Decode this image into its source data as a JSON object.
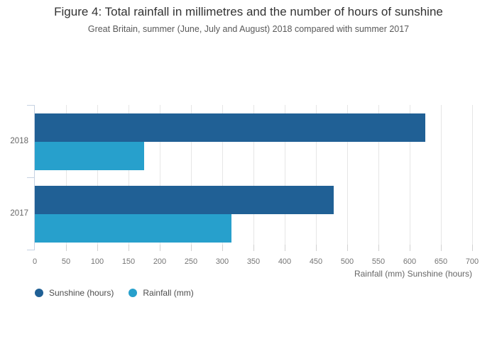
{
  "figure": {
    "title": "Figure 4: Total rainfall in millimetres and the number of hours of sunshine",
    "subtitle": "Great Britain, summer (June, July and August) 2018 compared with summer 2017"
  },
  "chart_data": {
    "type": "bar",
    "orientation": "horizontal",
    "categories": [
      "2018",
      "2017"
    ],
    "series": [
      {
        "name": "Sunshine (hours)",
        "color": "#206095",
        "values": [
          625,
          478
        ]
      },
      {
        "name": "Rainfall (mm)",
        "color": "#27a0cc",
        "values": [
          175,
          315
        ]
      }
    ],
    "xlabel": "Rainfall (mm) Sunshine (hours)",
    "xlim": [
      0,
      700
    ],
    "xticks": [
      0,
      50,
      100,
      150,
      200,
      250,
      300,
      350,
      400,
      450,
      500,
      550,
      600,
      650,
      700
    ],
    "grid": true,
    "legend_position": "bottom-left"
  },
  "colors": {
    "sunshine": "#206095",
    "rainfall": "#27a0cc",
    "axis_line": "#c6d2e2",
    "gridline": "#e6e6e6",
    "tick": "#d1d1d1",
    "tick_label": "#747474",
    "title": "#333333",
    "subtitle": "#595959",
    "background": "#ffffff"
  }
}
